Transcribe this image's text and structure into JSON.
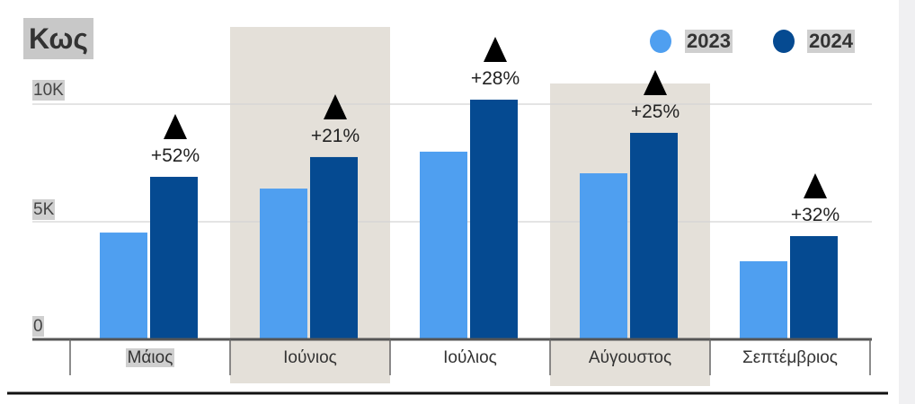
{
  "chart_data": {
    "type": "bar",
    "title": "Κως",
    "categories": [
      "Μάιος",
      "Ιούνιος",
      "Ιούλιος",
      "Αύγουστος",
      "Σεπτέμβριος"
    ],
    "series": [
      {
        "name": "2023",
        "color": "#4f9ff0",
        "values": [
          4540,
          6410,
          7980,
          7060,
          3320
        ]
      },
      {
        "name": "2024",
        "color": "#054a91",
        "values": [
          6910,
          7750,
          10190,
          8780,
          4390
        ]
      }
    ],
    "change_labels": [
      "+52%",
      "+21%",
      "+28%",
      "+25%",
      "+32%"
    ],
    "change_icon": "triangle-up-icon",
    "y_ticks": [
      "0",
      "5K",
      "10K"
    ],
    "ylim": [
      0,
      10000
    ],
    "grid": true,
    "legend": "top-right",
    "highlighted_categories": [
      "Ιούνιος",
      "Αύγουστος"
    ],
    "band_color": "#e4e0d9"
  }
}
